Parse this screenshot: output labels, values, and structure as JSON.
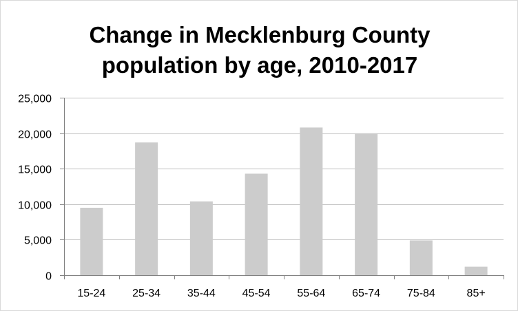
{
  "chart_data": {
    "type": "bar",
    "title_lines": [
      "Change in Mecklenburg County",
      "population by age, 2010-2017"
    ],
    "categories": [
      "15-24",
      "25-34",
      "35-44",
      "45-54",
      "55-64",
      "65-74",
      "75-84",
      "85+"
    ],
    "values": [
      9500,
      18700,
      10400,
      14300,
      20800,
      20000,
      4900,
      1200
    ],
    "ylim": [
      0,
      25000
    ],
    "yticks": [
      0,
      5000,
      10000,
      15000,
      20000,
      25000
    ],
    "ytick_labels": [
      "0",
      "5,000",
      "10,000",
      "15,000",
      "20,000",
      "25,000"
    ],
    "grid": true,
    "legend": "none",
    "xlabel": "",
    "ylabel": "",
    "colors": {
      "bar": "#cccccc",
      "grid": "#bfbfbf",
      "axis": "#808080"
    }
  }
}
